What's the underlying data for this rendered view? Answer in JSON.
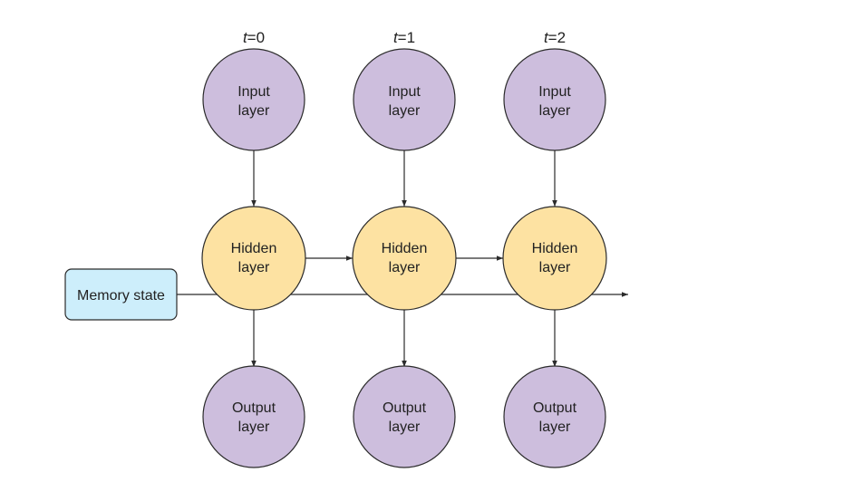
{
  "colors": {
    "input_fill": "#cdbedd",
    "hidden_fill": "#fde2a2",
    "output_fill": "#cdbedd",
    "memory_fill": "#cdeefb",
    "stroke": "#2b2b2b"
  },
  "time_steps": [
    {
      "label_t": "t",
      "label_rest": "=0",
      "input": [
        "Input",
        "layer"
      ],
      "hidden": [
        "Hidden",
        "layer"
      ],
      "output": [
        "Output",
        "layer"
      ]
    },
    {
      "label_t": "t",
      "label_rest": "=1",
      "input": [
        "Input",
        "layer"
      ],
      "hidden": [
        "Hidden",
        "layer"
      ],
      "output": [
        "Output",
        "layer"
      ]
    },
    {
      "label_t": "t",
      "label_rest": "=2",
      "input": [
        "Input",
        "layer"
      ],
      "hidden": [
        "Hidden",
        "layer"
      ],
      "output": [
        "Output",
        "layer"
      ]
    }
  ],
  "memory_state": {
    "label": "Memory state"
  }
}
